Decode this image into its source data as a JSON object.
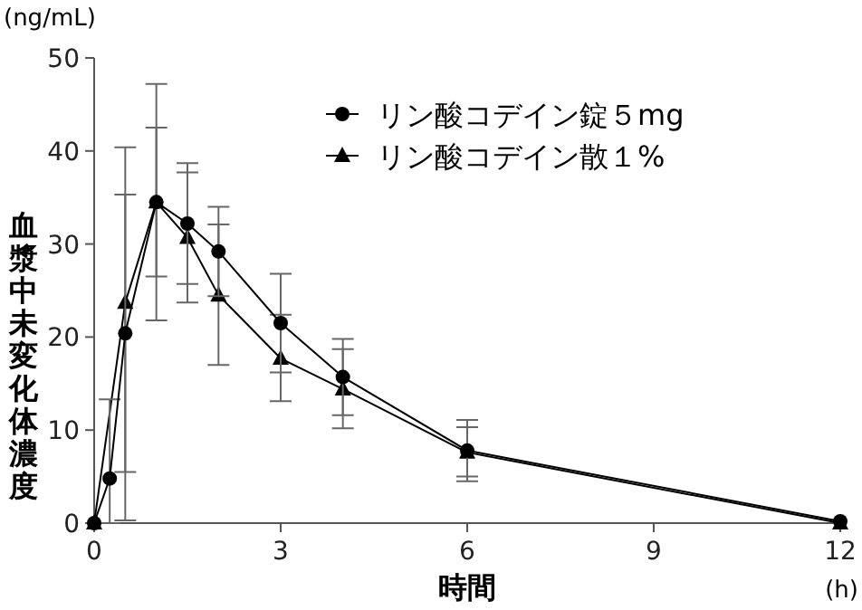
{
  "chart_data": {
    "type": "line",
    "xlabel": "時間",
    "ylabel": "血漿中未変化体濃度",
    "annotations": [
      "(ng/mL)",
      "(h)"
    ],
    "x": [
      0,
      0.25,
      0.5,
      1,
      1.5,
      2,
      3,
      4,
      6,
      12
    ],
    "series": [
      {
        "name": "リン酸コデイン錠５mg",
        "color": "#000000",
        "marker": "circle",
        "values": [
          0,
          4.8,
          20.4,
          34.5,
          32.2,
          29.2,
          21.5,
          15.7,
          7.8,
          0.2
        ],
        "errors": [
          null,
          [
            0,
            13.3
          ],
          [
            5.5,
            35.3
          ],
          [
            26.5,
            42.5
          ],
          [
            25.7,
            38.7
          ],
          [
            24.4,
            34
          ],
          [
            16.2,
            26.8
          ],
          [
            11.6,
            19.8
          ],
          [
            4.5,
            11.1
          ],
          null
        ]
      },
      {
        "name": "リン酸コデイン散１%",
        "color": "#000000",
        "marker": "triangle",
        "values": [
          0,
          null,
          23.7,
          34.5,
          30.7,
          24.5,
          17.7,
          14.4,
          7.6,
          0
        ],
        "errors": [
          null,
          null,
          [
            0.3,
            40.4
          ],
          [
            21.8,
            47.2
          ],
          [
            23.7,
            37.7
          ],
          [
            17,
            32.1
          ],
          [
            13.1,
            22.4
          ],
          [
            10.2,
            18.7
          ],
          [
            5,
            10.3
          ],
          null
        ]
      }
    ],
    "xlim": [
      0,
      12
    ],
    "xticks": [
      0,
      3,
      6,
      9,
      12
    ],
    "ylim": [
      0,
      50
    ],
    "yticks": [
      0,
      10,
      20,
      30,
      40,
      50
    ],
    "legend": "top right",
    "grid": false
  }
}
